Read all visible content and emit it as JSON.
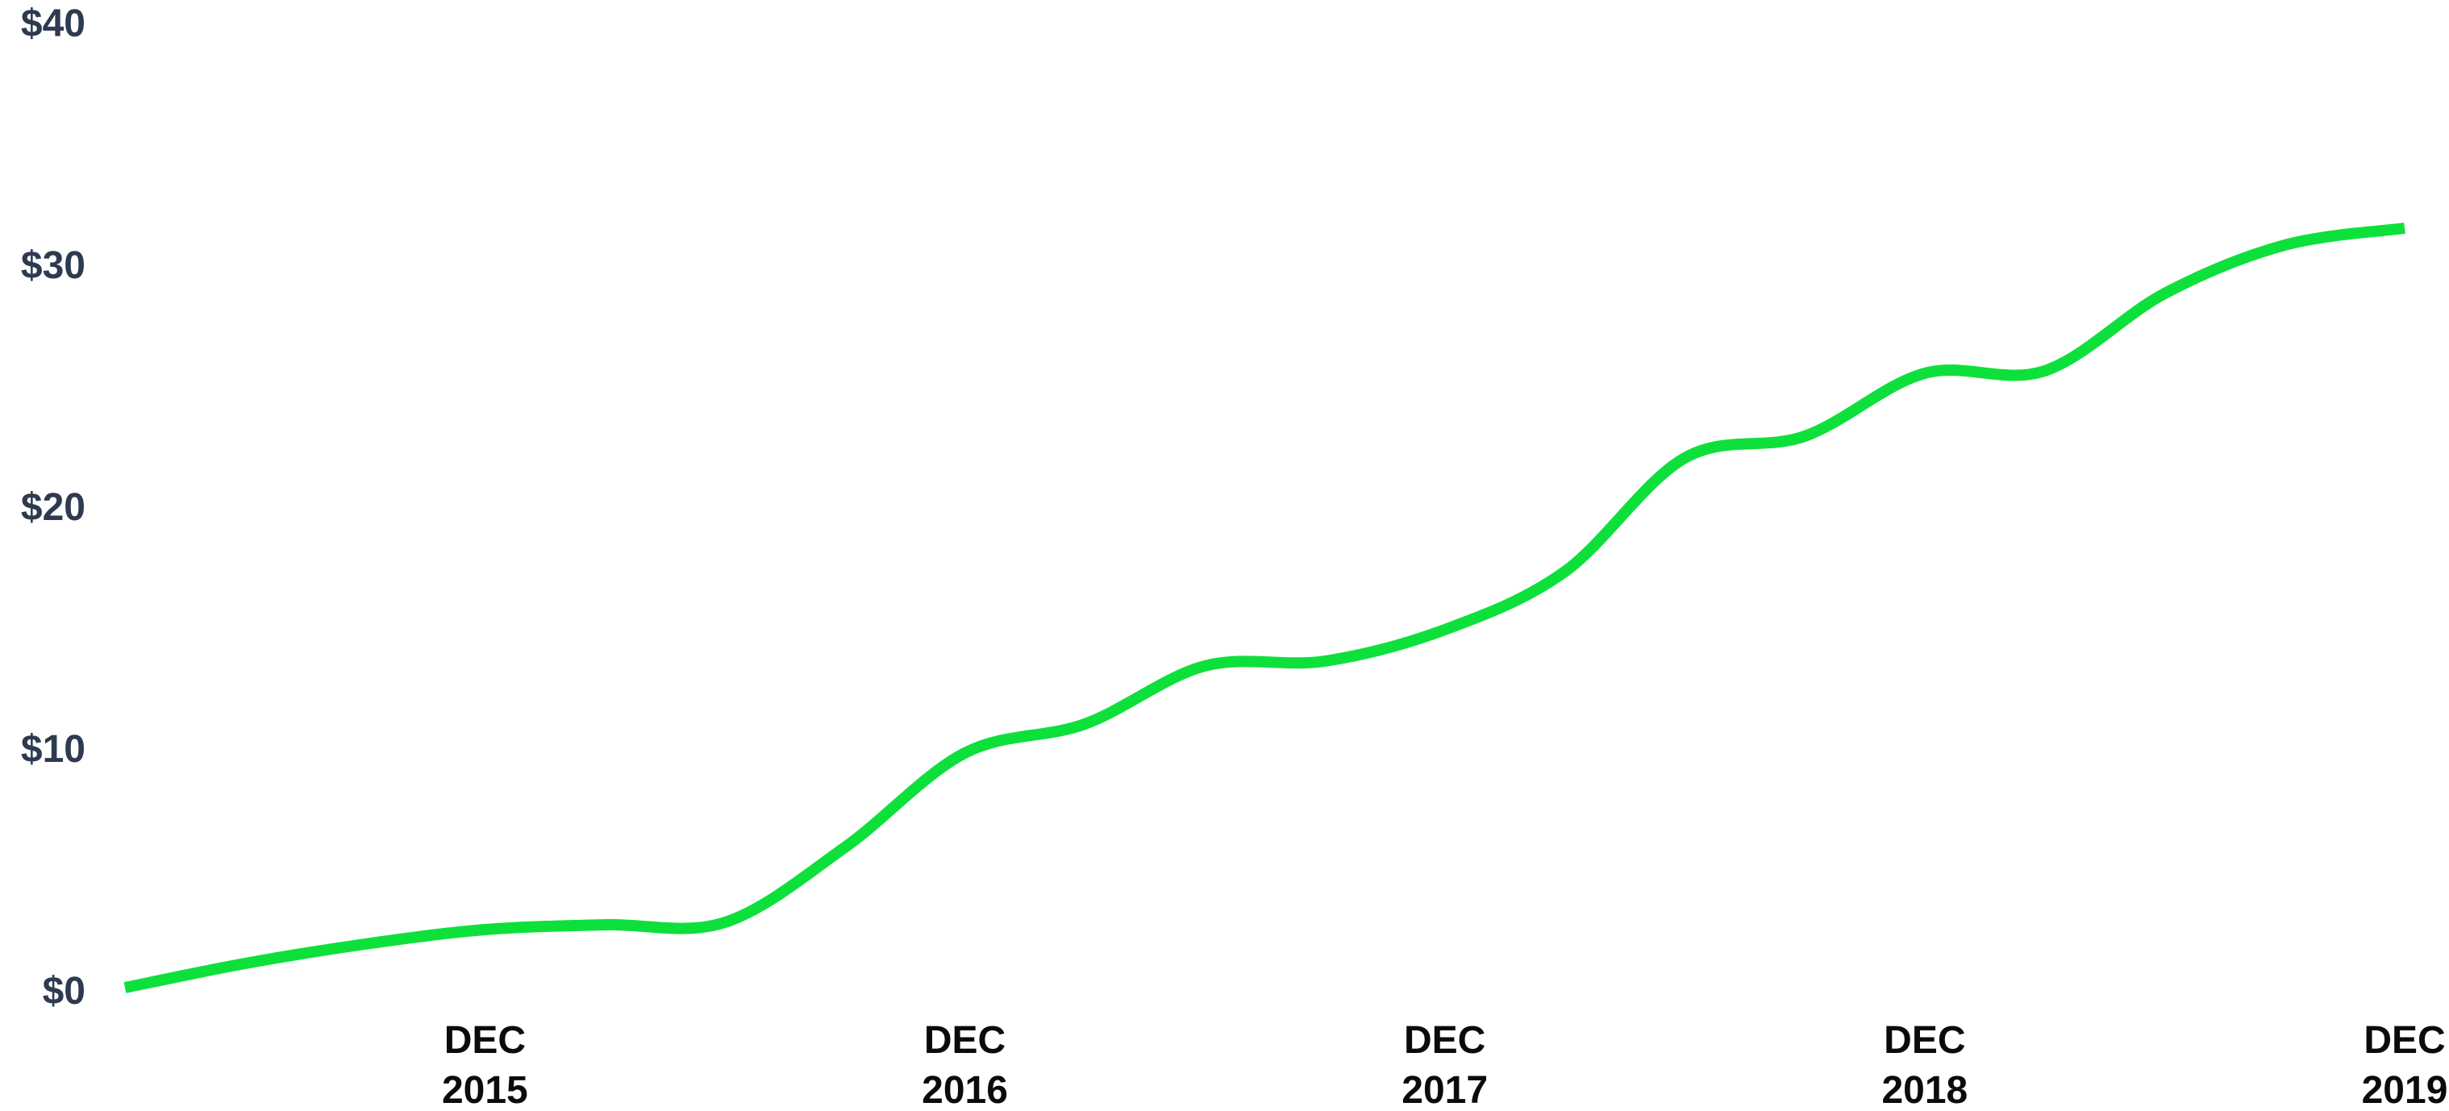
{
  "chart_data": {
    "type": "line",
    "title": "",
    "xlabel": "",
    "ylabel": "",
    "y_ticks": [
      "$40",
      "$30",
      "$20",
      "$10",
      "$0"
    ],
    "y_tick_values": [
      40,
      30,
      20,
      10,
      0
    ],
    "ylim": [
      0,
      40
    ],
    "x_ticks": [
      {
        "month": "DEC",
        "year": "2015"
      },
      {
        "month": "DEC",
        "year": "2016"
      },
      {
        "month": "DEC",
        "year": "2017"
      },
      {
        "month": "DEC",
        "year": "2018"
      },
      {
        "month": "DEC",
        "year": "2019"
      }
    ],
    "x_tick_dates": [
      "2015-12",
      "2016-12",
      "2017-12",
      "2018-12",
      "2019-12"
    ],
    "xlim": [
      "2015-03",
      "2019-12"
    ],
    "grid": false,
    "series": [
      {
        "color": "#0ee03b",
        "x": [
          "2015-03",
          "2015-06",
          "2015-09",
          "2015-12",
          "2016-03",
          "2016-06",
          "2016-09",
          "2016-12",
          "2017-03",
          "2017-06",
          "2017-09",
          "2017-12",
          "2018-03",
          "2018-06",
          "2018-09",
          "2018-12",
          "2019-03",
          "2019-06",
          "2019-09",
          "2019-12"
        ],
        "values": [
          0.1,
          1.1,
          1.9,
          2.5,
          2.7,
          2.8,
          5.9,
          9.8,
          11.0,
          13.4,
          13.6,
          14.9,
          17.3,
          22.0,
          22.9,
          25.5,
          25.6,
          28.8,
          30.8,
          31.5
        ]
      }
    ]
  }
}
